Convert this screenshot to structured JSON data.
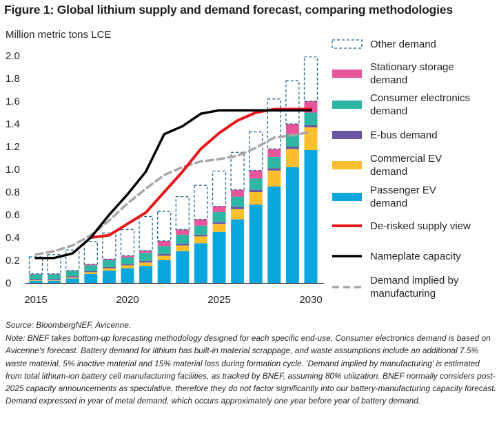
{
  "title": "Figure 1: Global lithium supply and demand forecast, comparing methodologies",
  "unit_label": "Million metric tons LCE",
  "source": "Source: BloombergNEF,  Avicenne.",
  "note": "Note: BNEF takes bottom-up forecasting methodology designed for each specific end-use. Consumer electronics demand is based on Avicenne's forecast. Battery demand for lithium has built-in material scrappage, and waste assumptions include an additional 7.5% waste material, 5% inactive material and 15% material loss during formation cycle. 'Demand implied by manufacturing' is estimated from total lithium-ion battery cell manufacturing facilities, as tracked by BNEF, assuming 80% utilization. BNEF normally considers post-2025 capacity announcements as speculative, therefore they do not factor significantly into our battery-manufacturing capacity forecast. Demand expressed in year of metal demand, which occurs approximately one year before year of battery demand.",
  "colors": {
    "passenger_ev": "#0aa6dd",
    "commercial_ev": "#fbbf2e",
    "e_bus": "#6b56a3",
    "consumer_electronics": "#2fb5a3",
    "stationary_storage": "#e9559b",
    "other_demand": "#1a6496",
    "de_risked_supply": "#e8161b",
    "nameplate_capacity": "#000000",
    "demand_implied": "#a6a6a6"
  },
  "chart_data": {
    "type": "bar",
    "stacked": true,
    "x": [
      2015,
      2016,
      2017,
      2018,
      2019,
      2020,
      2021,
      2022,
      2023,
      2024,
      2025,
      2026,
      2027,
      2028,
      2029,
      2030
    ],
    "xticks": [
      "2015",
      "2020",
      "2025",
      "2030"
    ],
    "yticks": [
      "0",
      "0.2",
      "0.4",
      "0.6",
      "0.8",
      "1.0",
      "1.2",
      "1.4",
      "1.6",
      "1.8",
      "2.0"
    ],
    "ylim": [
      0,
      2.0
    ],
    "ylabel": "Million metric tons LCE",
    "series": [
      {
        "name": "Passenger EV\ndemand",
        "key": "passenger_ev",
        "kind": "bar",
        "values": [
          0.02,
          0.02,
          0.04,
          0.08,
          0.11,
          0.13,
          0.15,
          0.2,
          0.28,
          0.35,
          0.45,
          0.56,
          0.69,
          0.85,
          1.02,
          1.17
        ]
      },
      {
        "name": "Commercial EV\ndemand",
        "key": "commercial_ev",
        "kind": "bar",
        "values": [
          0.005,
          0.005,
          0.01,
          0.015,
          0.02,
          0.025,
          0.03,
          0.04,
          0.05,
          0.06,
          0.07,
          0.09,
          0.11,
          0.14,
          0.16,
          0.2
        ]
      },
      {
        "name": "E-bus demand",
        "key": "e_bus",
        "kind": "bar",
        "values": [
          0.01,
          0.01,
          0.01,
          0.01,
          0.01,
          0.01,
          0.015,
          0.015,
          0.015,
          0.015,
          0.015,
          0.02,
          0.02,
          0.02,
          0.02,
          0.02
        ]
      },
      {
        "name": "Consumer electronics\ndemand",
        "key": "consumer_electronics",
        "kind": "bar",
        "values": [
          0.04,
          0.04,
          0.045,
          0.05,
          0.06,
          0.06,
          0.07,
          0.07,
          0.08,
          0.08,
          0.09,
          0.09,
          0.1,
          0.1,
          0.11,
          0.11
        ]
      },
      {
        "name": "Stationary storage\ndemand",
        "key": "stationary_storage",
        "kind": "bar",
        "values": [
          0.005,
          0.005,
          0.005,
          0.01,
          0.01,
          0.015,
          0.02,
          0.045,
          0.045,
          0.055,
          0.05,
          0.06,
          0.07,
          0.07,
          0.09,
          0.1
        ]
      },
      {
        "name": "Other demand",
        "key": "other_demand",
        "kind": "bar-outline",
        "values": [
          0.15,
          0.17,
          0.18,
          0.2,
          0.23,
          0.23,
          0.3,
          0.26,
          0.29,
          0.3,
          0.31,
          0.33,
          0.34,
          0.44,
          0.38,
          0.39
        ]
      },
      {
        "name": "De-risked supply view",
        "key": "de_risked_supply",
        "kind": "line",
        "values": [
          null,
          null,
          null,
          0.4,
          0.42,
          0.52,
          0.62,
          0.8,
          0.98,
          1.18,
          1.32,
          1.43,
          1.5,
          1.53,
          1.53,
          1.53
        ]
      },
      {
        "name": "Nameplate capacity",
        "key": "nameplate_capacity",
        "kind": "line",
        "values": [
          0.22,
          0.22,
          0.26,
          0.4,
          0.6,
          0.78,
          0.98,
          1.31,
          1.38,
          1.49,
          1.52,
          1.52,
          1.52,
          1.52,
          1.52,
          1.52
        ]
      },
      {
        "name": "Demand implied by\nmanufacturing",
        "key": "demand_implied",
        "kind": "dashed-line",
        "values": [
          0.25,
          0.28,
          0.33,
          0.42,
          0.55,
          0.7,
          0.83,
          0.95,
          1.02,
          1.07,
          1.09,
          1.12,
          1.19,
          1.28,
          1.3,
          1.33
        ]
      }
    ],
    "legend_placement": "right",
    "grid": false
  }
}
